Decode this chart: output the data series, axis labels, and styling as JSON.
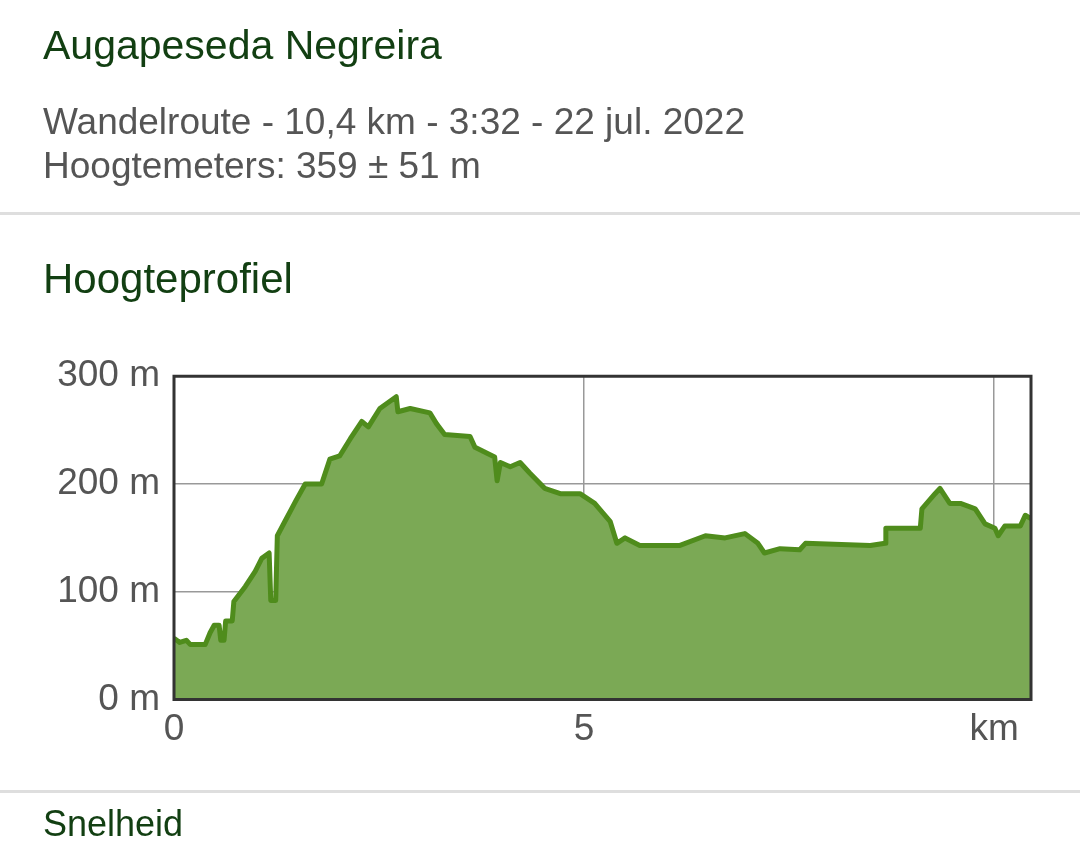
{
  "chart_data": {
    "type": "area",
    "title": "Augapeseda Negreira",
    "subtitle": "Wandelroute - 10,4 km - 3:32 - 22 jul. 2022\nHoogtemeters: 359 ± 51 m",
    "annotations": [
      "Hoogteprofiel",
      "Snelheid"
    ],
    "series": [
      {
        "color": "#4f8c1c",
        "x": [
          0,
          0.07,
          0.15,
          0.2,
          0.32,
          0.38,
          0.44,
          0.49,
          0.55,
          0.57,
          0.61,
          0.63,
          0.71,
          0.73,
          0.87,
          0.99,
          1.07,
          1.16,
          1.18,
          1.24,
          1.26,
          1.35,
          1.49,
          1.6,
          1.68,
          1.8,
          1.9,
          2.02,
          2.15,
          2.29,
          2.37,
          2.51,
          2.71,
          2.73,
          2.88,
          3.12,
          3.2,
          3.3,
          3.61,
          3.67,
          3.91,
          3.94,
          3.98,
          4.1,
          4.22,
          4.34,
          4.52,
          4.71,
          4.95,
          5.13,
          5.32,
          5.4,
          5.5,
          5.68,
          6.17,
          6.48,
          6.72,
          6.96,
          7.12,
          7.2,
          7.39,
          7.63,
          7.7,
          8.49,
          8.67,
          8.68,
          9.1,
          9.12,
          9.28,
          9.34,
          9.46,
          9.59,
          9.77,
          9.89,
          10.01,
          10.05,
          10.13,
          10.32,
          10.38,
          10.45
        ],
        "values": [
          57,
          53,
          55,
          51,
          51,
          51,
          62,
          69,
          69,
          55,
          55,
          73,
          73,
          91,
          105,
          119,
          131,
          136,
          92,
          92,
          152,
          165,
          185,
          200,
          200,
          200,
          223,
          226,
          242,
          258,
          253,
          270,
          281,
          267,
          270,
          266,
          256,
          246,
          244,
          234,
          225,
          203,
          220,
          216,
          220,
          210,
          196,
          191,
          191,
          182,
          165,
          145,
          150,
          143,
          143,
          152,
          150,
          154,
          145,
          136,
          140,
          139,
          145,
          143,
          145,
          159,
          159,
          177,
          191,
          196,
          182,
          182,
          177,
          163,
          159,
          152,
          161,
          161,
          171,
          168
        ]
      }
    ],
    "xlim": [
      0,
      10.45
    ],
    "xticks": [
      0,
      5,
      {
        "value": 10,
        "label": "km"
      }
    ],
    "ylim": [
      0,
      300
    ],
    "yticks": [
      {
        "value": 0,
        "label": "0 m"
      },
      {
        "value": 100,
        "label": "100 m"
      },
      {
        "value": 200,
        "label": "200 m"
      },
      {
        "value": 300,
        "label": "300 m"
      }
    ],
    "grid": true,
    "marker": "none",
    "line_style": "solid"
  }
}
